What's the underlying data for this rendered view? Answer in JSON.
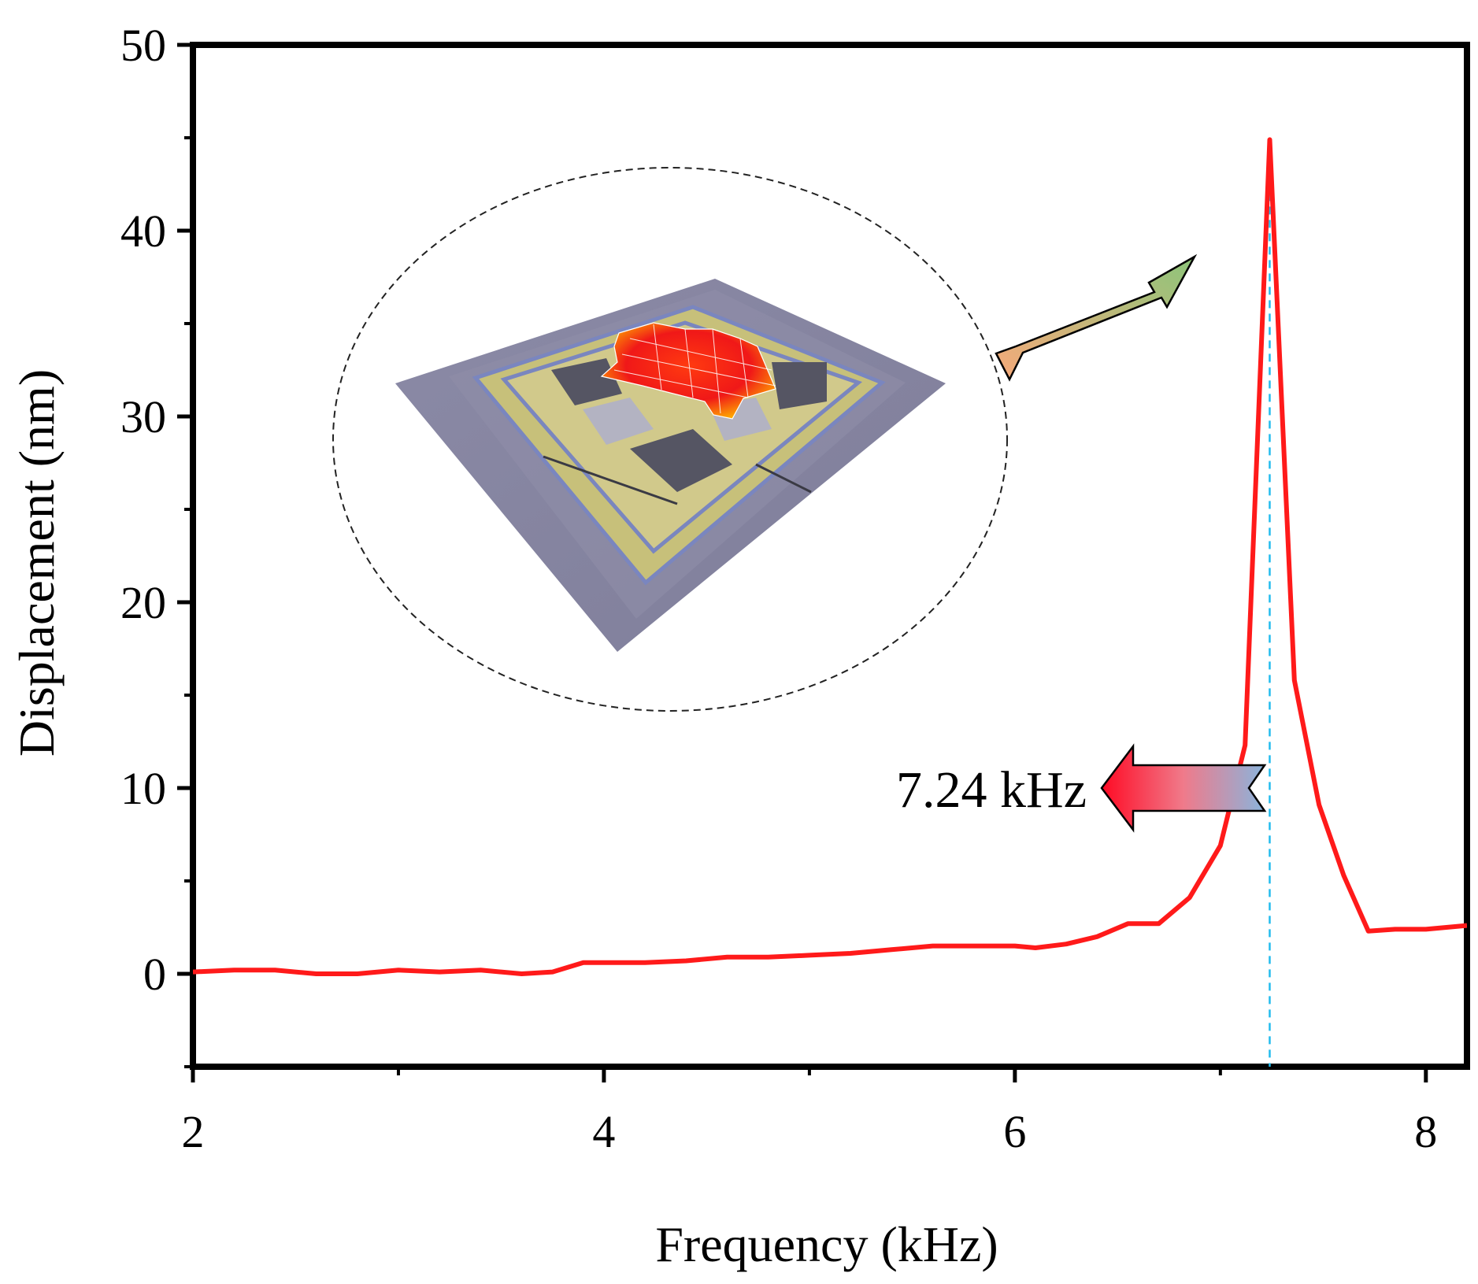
{
  "chart_data": {
    "type": "line",
    "title": "",
    "xlabel": "Frequency (kHz)",
    "ylabel": "Displacement (nm)",
    "xlim": [
      2,
      8.2
    ],
    "ylim": [
      -5,
      50
    ],
    "xticks": [
      2,
      4,
      6,
      8
    ],
    "yticks": [
      0,
      10,
      20,
      30,
      40,
      50
    ],
    "grid": false,
    "legend": "none",
    "series": [
      {
        "name": "Displacement",
        "color": "#ff1a1a",
        "x": [
          2.0,
          2.2,
          2.4,
          2.6,
          2.8,
          3.0,
          3.2,
          3.4,
          3.6,
          3.75,
          3.9,
          4.0,
          4.2,
          4.4,
          4.6,
          4.8,
          5.0,
          5.2,
          5.4,
          5.6,
          5.8,
          6.0,
          6.1,
          6.25,
          6.4,
          6.55,
          6.7,
          6.85,
          7.0,
          7.12,
          7.24,
          7.36,
          7.48,
          7.6,
          7.72,
          7.85,
          8.0,
          8.2
        ],
        "y": [
          0.1,
          0.2,
          0.2,
          0.0,
          0.0,
          0.2,
          0.1,
          0.2,
          0.0,
          0.1,
          0.6,
          0.6,
          0.6,
          0.7,
          0.9,
          0.9,
          1.0,
          1.1,
          1.3,
          1.5,
          1.5,
          1.5,
          1.4,
          1.6,
          2.0,
          2.7,
          2.7,
          4.1,
          6.9,
          12.3,
          44.9,
          15.8,
          9.1,
          5.3,
          2.3,
          2.4,
          2.4,
          2.6
        ]
      }
    ],
    "reference_line": {
      "x": 7.24,
      "style": "dashed",
      "color": "#22bbee"
    },
    "annotations": [
      {
        "text": "7.24 kHz",
        "type": "arrow-label"
      }
    ],
    "inset": {
      "description_icon": "mems-chip-mode-shape-image"
    }
  }
}
